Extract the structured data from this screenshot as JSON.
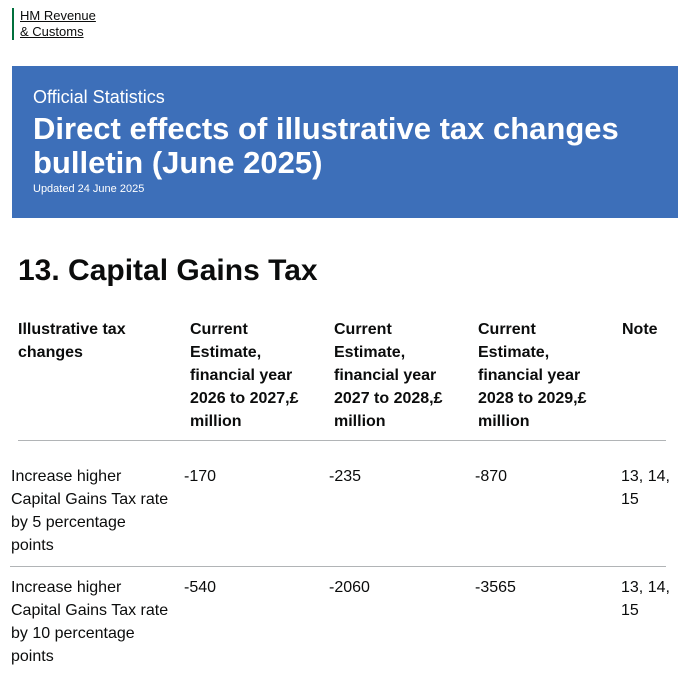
{
  "header": {
    "logo": [
      "HM Revenue",
      "& Customs"
    ]
  },
  "banner": {
    "kicker": "Official Statistics",
    "title": "Direct effects of illustrative tax changes bulletin (June 2025)",
    "updated": "Updated 24 June 2025"
  },
  "section": {
    "title": "13. Capital Gains Tax"
  },
  "table": {
    "columns": [
      "Illustrative tax changes",
      "Current Estimate, financial year 2026 to 2027,£ million",
      "Current Estimate, financial year 2027 to 2028,£ million",
      "Current Estimate, financial year 2028 to 2029,£ million",
      "Note"
    ],
    "rows": [
      [
        "Increase higher Capital Gains Tax rate by 5 percentage points",
        "-170",
        "-235",
        "-870",
        "13, 14, 15"
      ],
      [
        "Increase higher Capital Gains Tax rate by 10 percentage points",
        "-540",
        "-2060",
        "-3565",
        "13, 14, 15"
      ]
    ]
  }
}
